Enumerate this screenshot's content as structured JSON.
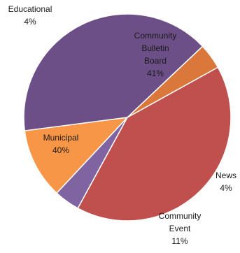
{
  "chart_data": {
    "type": "pie",
    "title": "",
    "slices": [
      {
        "label": "Community Bulletin Board",
        "label_lines": [
          "Community",
          "Bulletin",
          "Board"
        ],
        "value_label": "41%",
        "value": 41,
        "color": "#c0504d"
      },
      {
        "label": "News",
        "label_lines": [
          "News"
        ],
        "value_label": "4%",
        "value": 4,
        "color": "#8064a2"
      },
      {
        "label": "Community Event",
        "label_lines": [
          "Community",
          "Event"
        ],
        "value_label": "11%",
        "value": 11,
        "color": "#f79646"
      },
      {
        "label": "Municipal",
        "label_lines": [
          "Municipal"
        ],
        "value_label": "40%",
        "value": 40,
        "color": "#6b4f86"
      },
      {
        "label": "Educational",
        "label_lines": [
          "Educational"
        ],
        "value_label": "4%",
        "value": 4,
        "color": "#d9783a"
      }
    ],
    "start_angle_deg": -29,
    "direction": "clockwise",
    "legend": "none",
    "data_labels": "category and percent"
  }
}
